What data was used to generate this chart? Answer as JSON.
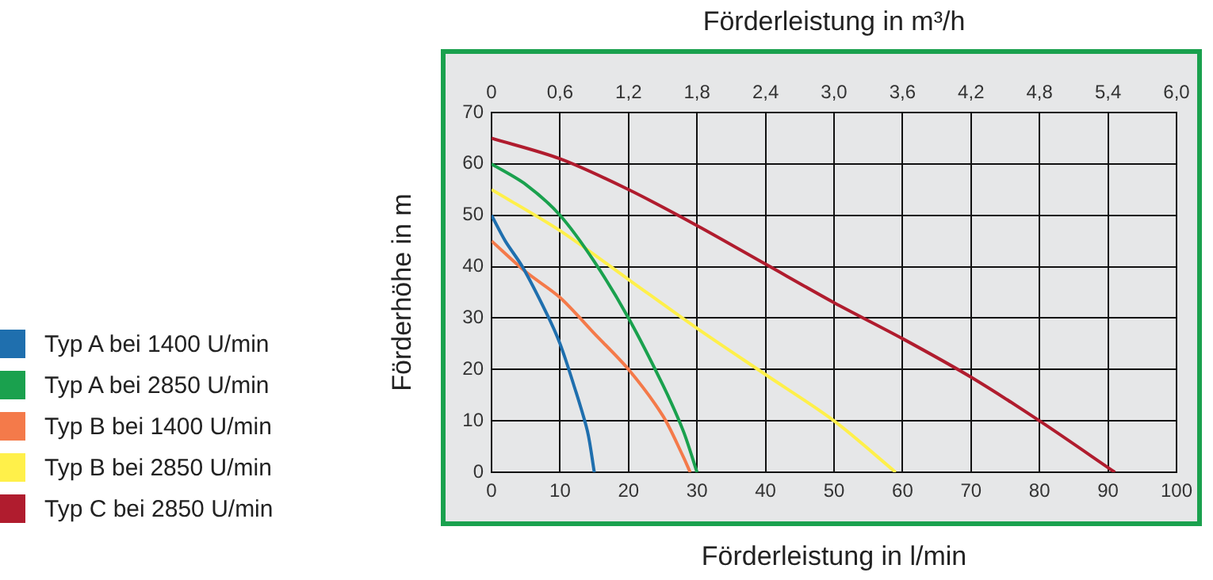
{
  "chart_data": {
    "type": "line",
    "xlabel": "Förderleistung in l/min",
    "x2label": "Förderleistung in m³/h",
    "ylabel": "Förderhöhe in m",
    "xlim": [
      0,
      100
    ],
    "xticks": [
      0,
      10,
      20,
      30,
      40,
      50,
      60,
      70,
      80,
      90,
      100
    ],
    "x2lim": [
      0,
      6
    ],
    "x2ticks": [
      0,
      {
        "value": 0.6,
        "label": "0,6"
      },
      {
        "value": 1.2,
        "label": "1,2"
      },
      {
        "value": 1.8,
        "label": "1,8"
      },
      {
        "value": 2.4,
        "label": "2,4"
      },
      {
        "value": 3,
        "label": "3,0"
      },
      {
        "value": 3.6,
        "label": "3,6"
      },
      {
        "value": 4.2,
        "label": "4,2"
      },
      {
        "value": 4.8,
        "label": "4,8"
      },
      {
        "value": 5.4,
        "label": "5,4"
      },
      {
        "value": 6,
        "label": "6,0"
      }
    ],
    "ylim": [
      0,
      70
    ],
    "yticks": [
      0,
      10,
      20,
      30,
      40,
      50,
      60,
      70
    ],
    "grid": true,
    "legend": "left",
    "marker": "none",
    "line_style": "solid",
    "series": [
      {
        "name": "Typ A bei 1400 U/min",
        "color": "#1f6fae",
        "x": [
          0,
          2,
          4.5,
          8,
          10,
          12,
          14,
          15
        ],
        "values": [
          50,
          45,
          40,
          31,
          25,
          17,
          8,
          0
        ]
      },
      {
        "name": "Typ A bei 2850 U/min",
        "color": "#1aa14e",
        "x": [
          0,
          5,
          10,
          15,
          20,
          25,
          28,
          30
        ],
        "values": [
          60,
          56,
          50,
          41,
          30,
          17,
          8,
          0
        ]
      },
      {
        "name": "Typ B bei 1400 U/min",
        "color": "#f47a4a",
        "x": [
          0,
          5,
          10,
          15,
          20,
          25,
          28,
          29
        ],
        "values": [
          45,
          39,
          34,
          27,
          20,
          11,
          3,
          0
        ]
      },
      {
        "name": "Typ B bei 2850 U/min",
        "color": "#fff04a",
        "x": [
          0,
          10,
          20,
          30,
          40,
          50,
          59
        ],
        "values": [
          55,
          47,
          37.5,
          28,
          19,
          10,
          0
        ]
      },
      {
        "name": "Typ C bei 2850 U/min",
        "color": "#b01c2e",
        "x": [
          0,
          10,
          20,
          30,
          40,
          50,
          60,
          70,
          80,
          91
        ],
        "values": [
          65,
          61,
          55,
          48,
          40.5,
          33,
          26,
          18.5,
          10,
          0
        ]
      }
    ]
  }
}
